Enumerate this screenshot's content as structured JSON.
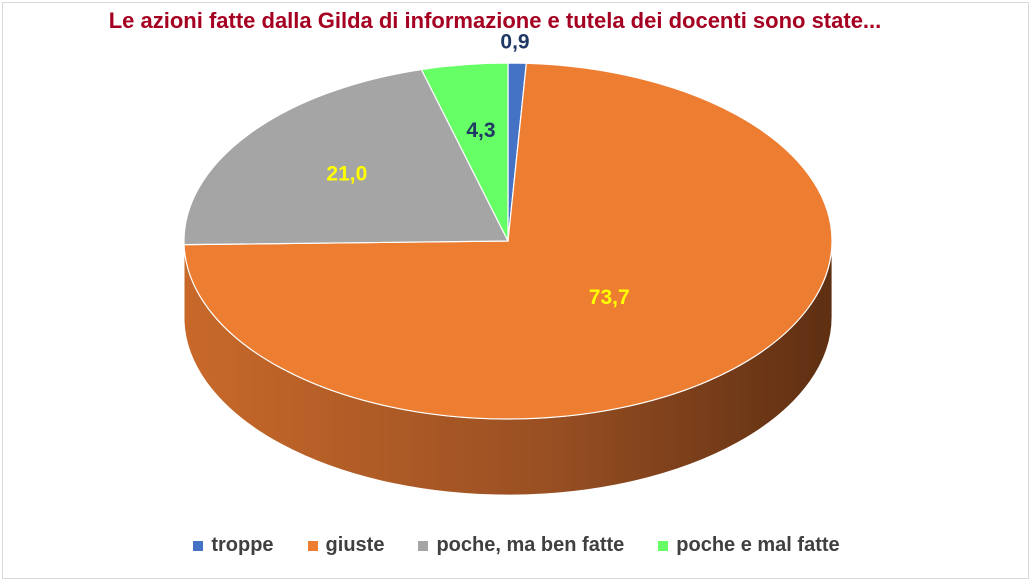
{
  "chart_data": {
    "type": "pie",
    "title": "Le azioni fatte dalla Gilda di informazione e tutela dei docenti sono state...",
    "categories": [
      "troppe",
      "giuste",
      "poche, ma ben fatte",
      "poche e mal fatte"
    ],
    "values": [
      0.9,
      73.7,
      21.0,
      4.3
    ],
    "data_labels": [
      "0,9",
      "73,7",
      "21,0",
      "4,3"
    ],
    "colors": [
      "#4472c4",
      "#ed7d31",
      "#a5a5a5",
      "#66ff66"
    ],
    "label_colors": [
      "#1f3864",
      "#ffff00",
      "#ffff00",
      "#1f3864"
    ],
    "style": "3d",
    "legend_position": "bottom"
  }
}
